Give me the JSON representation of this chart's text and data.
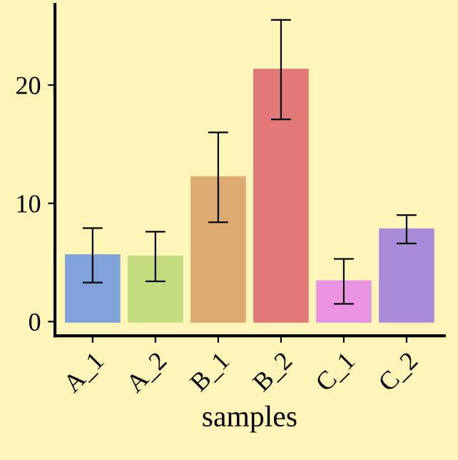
{
  "chart_data": {
    "type": "bar",
    "xlabel": "samples",
    "categories": [
      "A_1",
      "A_2",
      "B_1",
      "B_2",
      "C_1",
      "C_2"
    ],
    "values": [
      5.6,
      5.5,
      12.2,
      21.3,
      3.4,
      7.8
    ],
    "errors": [
      2.3,
      2.1,
      3.8,
      4.2,
      1.9,
      1.2
    ],
    "colors": [
      "#7fa3d8",
      "#c2dc80",
      "#ddaa70",
      "#e07878",
      "#e994e0",
      "#a98ad6"
    ],
    "ylim": [
      -1.2,
      26.8
    ],
    "yticks": [
      0,
      10,
      20
    ],
    "grid": false
  }
}
